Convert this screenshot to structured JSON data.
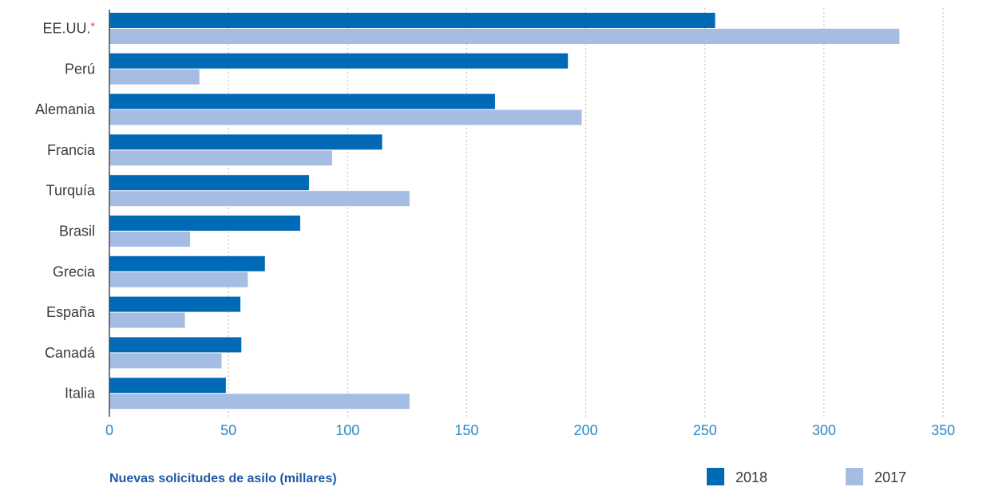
{
  "chart_data": {
    "type": "bar",
    "orientation": "horizontal",
    "categories": [
      "EE.UU.",
      "Perú",
      "Alemania",
      "Francia",
      "Turquía",
      "Brasil",
      "Grecia",
      "España",
      "Canadá",
      "Italia"
    ],
    "category_notes": {
      "EE.UU.": "*"
    },
    "series": [
      {
        "name": "2018",
        "color": "#006ab6",
        "values": [
          254.3,
          192.5,
          161.9,
          114.5,
          83.8,
          80.1,
          65.3,
          55.0,
          55.4,
          48.9
        ]
      },
      {
        "name": "2017",
        "color": "#a6bde3",
        "values": [
          331.7,
          37.8,
          198.3,
          93.5,
          126.0,
          33.9,
          58.1,
          31.7,
          47.1,
          126.0
        ]
      }
    ],
    "xlabel": "Nuevas solicitudes de asilo (millares)",
    "xlim": [
      0,
      350
    ],
    "xticks": [
      0,
      50,
      100,
      150,
      200,
      250,
      300,
      350
    ],
    "grid": true,
    "legend": "bottom-right"
  },
  "colors": {
    "tick_label": "#2b8ac6",
    "xlabel": "#1d5aa8",
    "text": "#3b3b3b"
  }
}
